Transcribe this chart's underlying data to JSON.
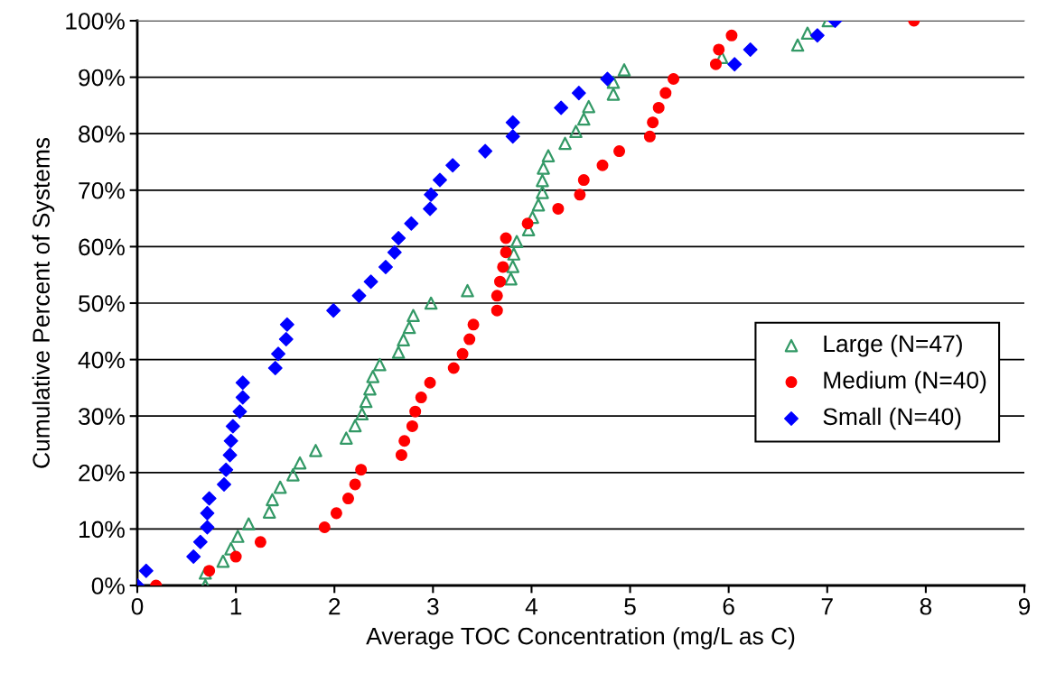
{
  "chart_data": {
    "type": "scatter",
    "xlabel": "Average TOC Concentration (mg/L as C)",
    "ylabel": "Cumulative Percent of Systems",
    "xlim": [
      0,
      9
    ],
    "xticks": [
      0,
      1,
      2,
      3,
      4,
      5,
      6,
      7,
      8,
      9
    ],
    "ylim": [
      0,
      100
    ],
    "yticks": [
      {
        "value": 0,
        "label": "0%"
      },
      {
        "value": 10,
        "label": "10%"
      },
      {
        "value": 20,
        "label": "20%"
      },
      {
        "value": 30,
        "label": "30%"
      },
      {
        "value": 40,
        "label": "40%"
      },
      {
        "value": 50,
        "label": "50%"
      },
      {
        "value": 60,
        "label": "60%"
      },
      {
        "value": 70,
        "label": "70%"
      },
      {
        "value": 80,
        "label": "80%"
      },
      {
        "value": 90,
        "label": "90%"
      },
      {
        "value": 100,
        "label": "100%"
      }
    ],
    "grid": "y",
    "legend": "right",
    "series": [
      {
        "name": "Large (N=47)",
        "color": "#339966",
        "marker": "triangle",
        "x": [
          0.69,
          0.69,
          0.87,
          0.95,
          1.02,
          1.13,
          1.34,
          1.37,
          1.45,
          1.58,
          1.65,
          1.81,
          2.12,
          2.21,
          2.28,
          2.32,
          2.36,
          2.39,
          2.46,
          2.65,
          2.7,
          2.76,
          2.8,
          2.98,
          3.35,
          3.79,
          3.81,
          3.82,
          3.85,
          3.97,
          4.01,
          4.07,
          4.11,
          4.11,
          4.12,
          4.17,
          4.34,
          4.45,
          4.53,
          4.58,
          4.83,
          4.83,
          4.94,
          5.93,
          6.7,
          6.8,
          7.01
        ],
        "values": [
          0,
          2.2,
          4.3,
          6.5,
          8.7,
          10.9,
          13.0,
          15.2,
          17.4,
          19.6,
          21.7,
          23.9,
          26.1,
          28.3,
          30.4,
          32.6,
          34.8,
          37.0,
          39.1,
          41.3,
          43.5,
          45.7,
          47.8,
          50.0,
          52.2,
          54.3,
          56.5,
          58.7,
          60.9,
          63.0,
          65.2,
          67.4,
          69.6,
          71.7,
          73.9,
          76.1,
          78.3,
          80.4,
          82.6,
          84.8,
          87.0,
          89.1,
          91.3,
          93.5,
          95.7,
          97.8,
          100
        ]
      },
      {
        "name": "Medium (N=40)",
        "color": "#ff0000",
        "marker": "circle",
        "x": [
          0.19,
          0.73,
          1.0,
          1.25,
          1.9,
          2.02,
          2.14,
          2.21,
          2.27,
          2.68,
          2.71,
          2.79,
          2.82,
          2.88,
          2.97,
          3.21,
          3.3,
          3.37,
          3.41,
          3.65,
          3.65,
          3.68,
          3.71,
          3.74,
          3.74,
          3.96,
          4.27,
          4.49,
          4.53,
          4.72,
          4.89,
          5.2,
          5.23,
          5.29,
          5.36,
          5.44,
          5.87,
          5.9,
          6.03,
          7.88
        ],
        "values": [
          0,
          2.6,
          5.1,
          7.7,
          10.3,
          12.8,
          15.4,
          17.9,
          20.5,
          23.1,
          25.6,
          28.2,
          30.8,
          33.3,
          35.9,
          38.5,
          41.0,
          43.6,
          46.2,
          48.7,
          51.3,
          53.8,
          56.4,
          59.0,
          61.5,
          64.1,
          66.7,
          69.2,
          71.8,
          74.4,
          76.9,
          79.5,
          82.0,
          84.6,
          87.2,
          89.7,
          92.3,
          94.9,
          97.4,
          100
        ]
      },
      {
        "name": "Small (N=40)",
        "color": "#0000ff",
        "marker": "diamond",
        "x": [
          0.0,
          0.09,
          0.57,
          0.64,
          0.71,
          0.71,
          0.73,
          0.88,
          0.9,
          0.94,
          0.95,
          0.97,
          1.04,
          1.07,
          1.07,
          1.4,
          1.43,
          1.51,
          1.52,
          1.99,
          2.25,
          2.37,
          2.52,
          2.61,
          2.65,
          2.78,
          2.97,
          2.98,
          3.07,
          3.2,
          3.53,
          3.81,
          3.81,
          4.3,
          4.48,
          4.77,
          6.06,
          6.22,
          6.9,
          7.08
        ],
        "values": [
          0,
          2.6,
          5.1,
          7.7,
          10.3,
          12.8,
          15.4,
          17.9,
          20.5,
          23.1,
          25.6,
          28.2,
          30.8,
          33.3,
          35.9,
          38.5,
          41.0,
          43.6,
          46.2,
          48.7,
          51.3,
          53.8,
          56.4,
          59.0,
          61.5,
          64.1,
          66.7,
          69.2,
          71.8,
          74.4,
          76.9,
          79.5,
          82.0,
          84.6,
          87.2,
          89.7,
          92.3,
          94.9,
          97.4,
          100
        ]
      }
    ]
  }
}
